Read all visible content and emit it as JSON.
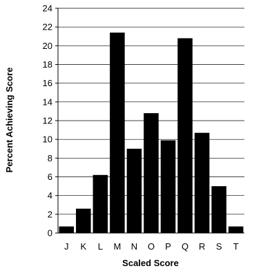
{
  "chart_data": {
    "type": "bar",
    "title": "",
    "xlabel": "Scaled Score",
    "ylabel": "Percent Achieving Score",
    "categories": [
      "J",
      "K",
      "L",
      "M",
      "N",
      "O",
      "P",
      "Q",
      "R",
      "S",
      "T"
    ],
    "values": [
      0.7,
      2.6,
      6.2,
      21.4,
      9.0,
      12.8,
      9.9,
      20.8,
      10.7,
      5.0,
      0.7
    ],
    "ylim": [
      0,
      24
    ],
    "yticks": [
      0,
      2,
      4,
      6,
      8,
      10,
      12,
      14,
      16,
      18,
      20,
      22,
      24
    ],
    "grid": true,
    "legend": "none",
    "bar_color": "#000000",
    "grid_color": "#000000"
  }
}
